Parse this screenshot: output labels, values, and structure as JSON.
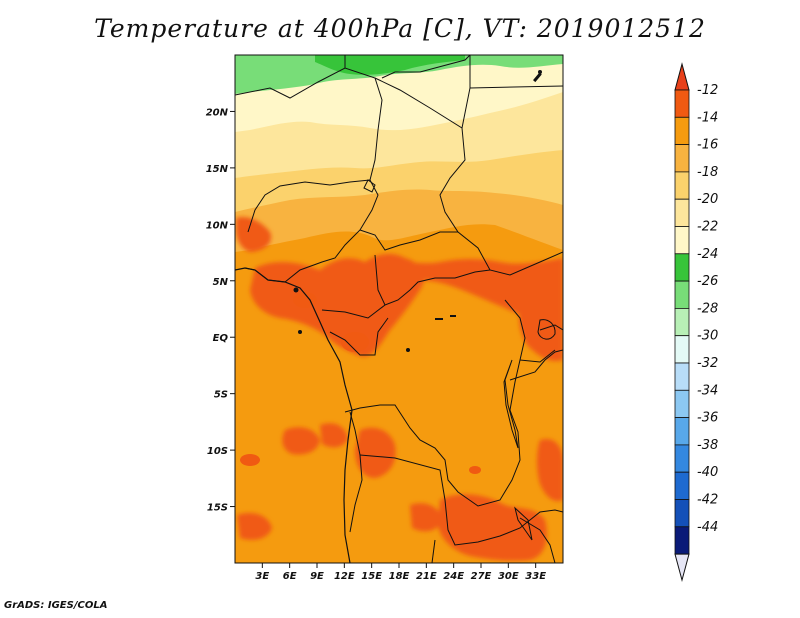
{
  "title": "Temperature at 400hPa [C], VT: 2019012512",
  "footer": "GrADS: IGES/COLA",
  "map": {
    "lon_range": [
      0,
      36
    ],
    "lat_range": [
      -20,
      25
    ],
    "lat_ticks": [
      {
        "lat": 20,
        "label": "20N"
      },
      {
        "lat": 15,
        "label": "15N"
      },
      {
        "lat": 10,
        "label": "10N"
      },
      {
        "lat": 5,
        "label": "5N"
      },
      {
        "lat": 0,
        "label": "EQ"
      },
      {
        "lat": -5,
        "label": "5S"
      },
      {
        "lat": -10,
        "label": "10S"
      },
      {
        "lat": -15,
        "label": "15S"
      }
    ],
    "lon_ticks": [
      {
        "lon": 3,
        "label": "3E"
      },
      {
        "lon": 6,
        "label": "6E"
      },
      {
        "lon": 9,
        "label": "9E"
      },
      {
        "lon": 12,
        "label": "12E"
      },
      {
        "lon": 15,
        "label": "15E"
      },
      {
        "lon": 18,
        "label": "18E"
      },
      {
        "lon": 21,
        "label": "21E"
      },
      {
        "lon": 24,
        "label": "24E"
      },
      {
        "lon": 27,
        "label": "27E"
      },
      {
        "lon": 30,
        "label": "30E"
      },
      {
        "lon": 33,
        "label": "33E"
      }
    ]
  },
  "colorbar": {
    "top_arrow_color": "#e8401a",
    "bottom_arrow_color": "#e6e6f5",
    "bins": [
      {
        "color": "#f05a12",
        "label": "-12"
      },
      {
        "color": "#f59b0f",
        "label": "-14"
      },
      {
        "color": "#f8b340",
        "label": "-16"
      },
      {
        "color": "#fbd26c",
        "label": "-18"
      },
      {
        "color": "#fde69c",
        "label": "-20"
      },
      {
        "color": "#fff7c8",
        "label": "-22"
      },
      {
        "color": "#37c43a",
        "label": "-24"
      },
      {
        "color": "#78dd78",
        "label": "-26"
      },
      {
        "color": "#b8f0b6",
        "label": "-28"
      },
      {
        "color": "#e4faf6",
        "label": "-30"
      },
      {
        "color": "#b8ddf8",
        "label": "-32"
      },
      {
        "color": "#8cc8f2",
        "label": "-34"
      },
      {
        "color": "#58a8ea",
        "label": "-36"
      },
      {
        "color": "#3488e0",
        "label": "-38"
      },
      {
        "color": "#1e6ad0",
        "label": "-40"
      },
      {
        "color": "#1450b8",
        "label": "-42"
      },
      {
        "color": "#0a1a78",
        "label": "-44"
      }
    ]
  }
}
